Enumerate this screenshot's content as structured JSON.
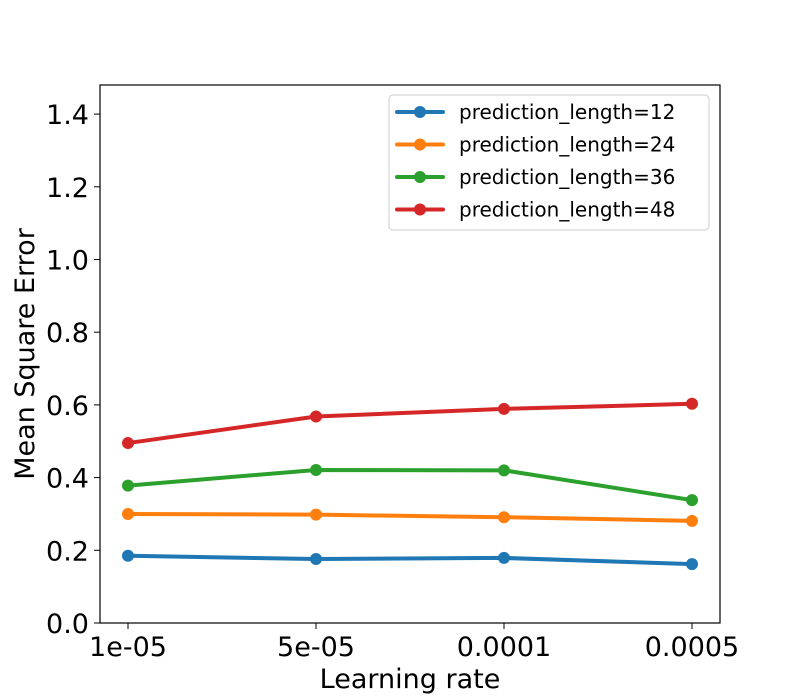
{
  "chart_data": {
    "type": "line",
    "title": "",
    "xlabel": "Learning rate",
    "ylabel": "Mean Square Error",
    "categories": [
      "1e-05",
      "5e-05",
      "0.0001",
      "0.0005"
    ],
    "ylim": [
      0.0,
      1.48
    ],
    "yticks": [
      0.0,
      0.2,
      0.4,
      0.6,
      0.8,
      1.0,
      1.2,
      1.4
    ],
    "ytick_labels": [
      "0.0",
      "0.2",
      "0.4",
      "0.6",
      "0.8",
      "1.0",
      "1.2",
      "1.4"
    ],
    "grid": false,
    "legend_position": "top-right",
    "series": [
      {
        "name": "prediction_length=12",
        "color": "#1f77b4",
        "values": [
          0.185,
          0.176,
          0.179,
          0.162
        ]
      },
      {
        "name": "prediction_length=24",
        "color": "#ff7f0e",
        "values": [
          0.3,
          0.298,
          0.291,
          0.281
        ]
      },
      {
        "name": "prediction_length=36",
        "color": "#2ca02c",
        "values": [
          0.378,
          0.421,
          0.42,
          0.338
        ]
      },
      {
        "name": "prediction_length=48",
        "color": "#d62728",
        "values": [
          0.495,
          0.568,
          0.589,
          0.603
        ]
      }
    ]
  }
}
